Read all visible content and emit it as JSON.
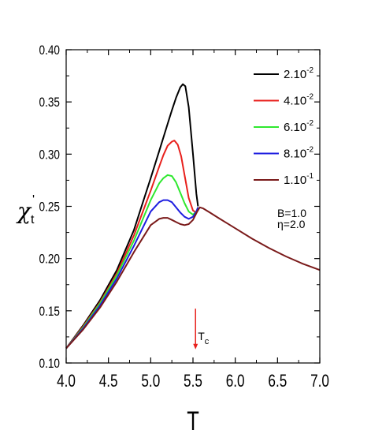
{
  "chart_data": {
    "type": "line",
    "xlabel": "T",
    "ylabel_main": "χ",
    "ylabel_sub": "t",
    "ylabel_sup": "'",
    "xlim": [
      4.0,
      7.0
    ],
    "ylim": [
      0.1,
      0.4
    ],
    "x_ticks": [
      "4.0",
      "4.5",
      "5.0",
      "5.5",
      "6.0",
      "6.5",
      "7.0"
    ],
    "y_ticks": [
      "0.10",
      "0.15",
      "0.20",
      "0.25",
      "0.30",
      "0.35",
      "0.40"
    ],
    "legend_position": "top-right",
    "annotations": [
      {
        "text": "B=1.0"
      },
      {
        "text": "η=2.0"
      }
    ],
    "tc_marker": {
      "label_main": "T",
      "label_sub": "c",
      "x": 5.53,
      "y_from": 0.152,
      "y_to": 0.113,
      "color": "#e8201c"
    },
    "series": [
      {
        "name_base": "2.10",
        "name_exp": "-2",
        "color": "#000000",
        "x": [
          4.0,
          4.2,
          4.4,
          4.6,
          4.8,
          5.0,
          5.1,
          5.2,
          5.25,
          5.3,
          5.35,
          5.38,
          5.41,
          5.45,
          5.5,
          5.54,
          5.56
        ],
        "y": [
          0.114,
          0.136,
          0.16,
          0.189,
          0.227,
          0.277,
          0.303,
          0.329,
          0.342,
          0.354,
          0.364,
          0.367,
          0.365,
          0.345,
          0.3,
          0.262,
          0.25
        ]
      },
      {
        "name_base": "4.10",
        "name_exp": "-2",
        "color": "#e8201c",
        "x": [
          4.0,
          4.2,
          4.4,
          4.6,
          4.8,
          5.0,
          5.1,
          5.15,
          5.2,
          5.25,
          5.28,
          5.32,
          5.36,
          5.4,
          5.45,
          5.5,
          5.54,
          5.56
        ],
        "y": [
          0.114,
          0.135,
          0.158,
          0.186,
          0.222,
          0.265,
          0.288,
          0.299,
          0.308,
          0.312,
          0.313,
          0.309,
          0.298,
          0.28,
          0.258,
          0.246,
          0.244,
          0.249
        ]
      },
      {
        "name_base": "6.10",
        "name_exp": "-2",
        "color": "#2fe82f",
        "x": [
          4.0,
          4.2,
          4.4,
          4.6,
          4.8,
          5.0,
          5.1,
          5.15,
          5.2,
          5.25,
          5.3,
          5.35,
          5.4,
          5.45,
          5.5,
          5.54,
          5.56
        ],
        "y": [
          0.114,
          0.134,
          0.157,
          0.184,
          0.217,
          0.256,
          0.272,
          0.277,
          0.28,
          0.279,
          0.273,
          0.263,
          0.253,
          0.245,
          0.242,
          0.245,
          0.249
        ]
      },
      {
        "name_base": "8.10",
        "name_exp": "-2",
        "color": "#1d1de0",
        "x": [
          4.0,
          4.2,
          4.4,
          4.6,
          4.8,
          5.0,
          5.1,
          5.15,
          5.2,
          5.25,
          5.3,
          5.35,
          5.4,
          5.45,
          5.5,
          5.54,
          5.56
        ],
        "y": [
          0.114,
          0.133,
          0.155,
          0.181,
          0.212,
          0.245,
          0.254,
          0.256,
          0.256,
          0.254,
          0.249,
          0.244,
          0.24,
          0.238,
          0.24,
          0.245,
          0.249
        ]
      },
      {
        "name_base": "1.10",
        "name_exp": "-1",
        "color": "#7a1a1a",
        "x": [
          4.0,
          4.2,
          4.4,
          4.6,
          4.8,
          5.0,
          5.1,
          5.15,
          5.2,
          5.25,
          5.3,
          5.35,
          5.4,
          5.45,
          5.5,
          5.55,
          5.58,
          5.62,
          5.7,
          5.8,
          5.9,
          6.0,
          6.2,
          6.4,
          6.6,
          6.8,
          7.0
        ],
        "y": [
          0.114,
          0.132,
          0.153,
          0.178,
          0.206,
          0.232,
          0.238,
          0.239,
          0.239,
          0.237,
          0.235,
          0.233,
          0.232,
          0.233,
          0.237,
          0.245,
          0.249,
          0.248,
          0.244,
          0.239,
          0.234,
          0.229,
          0.219,
          0.21,
          0.202,
          0.195,
          0.189
        ]
      }
    ]
  }
}
